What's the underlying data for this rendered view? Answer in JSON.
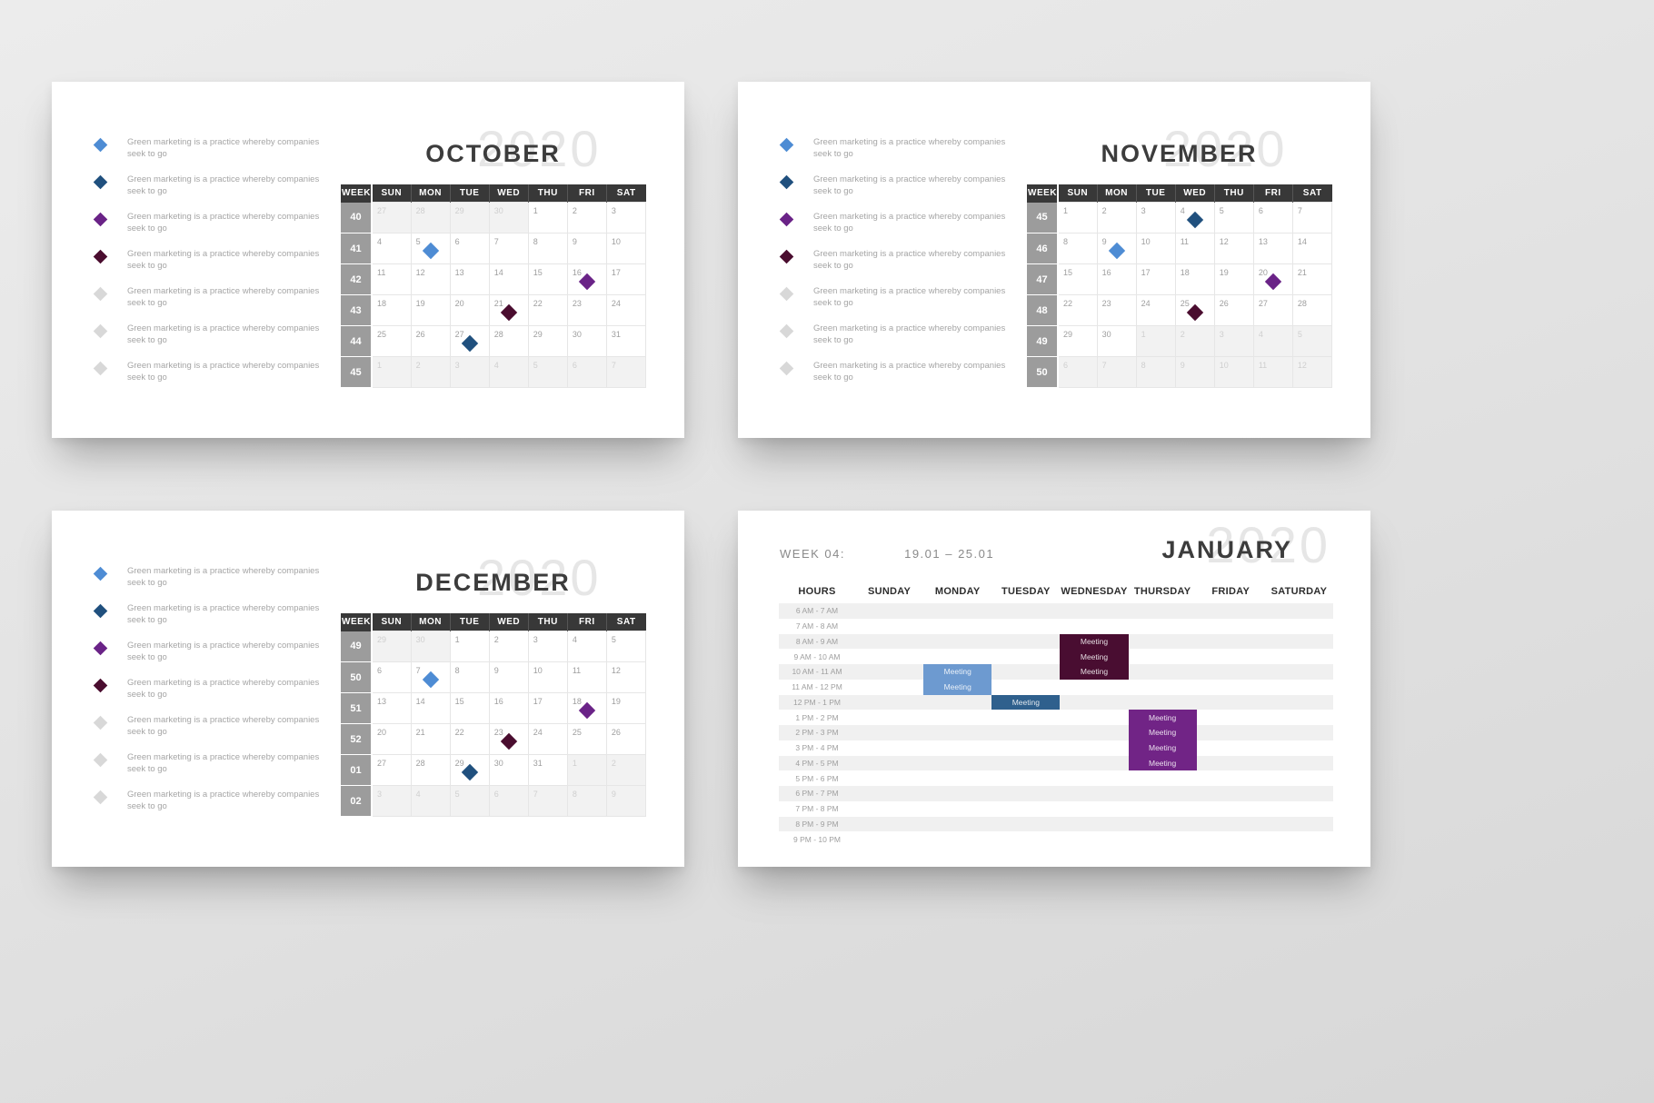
{
  "palette": {
    "blue": "#4E8CD4",
    "navy": "#20507E",
    "purple": "#6A2387",
    "maroon": "#4A0D2F",
    "gray": "#D8D8D8",
    "meeting_blue_light": "#6D9AD0",
    "meeting_blue_dark": "#2F608D",
    "meeting_maroon": "#490D31",
    "meeting_purple": "#712486"
  },
  "legend": {
    "line1": "Green marketing is a practice whereby companies",
    "line2": "seek to go",
    "items": [
      "blue",
      "navy",
      "purple",
      "maroon",
      "gray",
      "gray",
      "gray"
    ]
  },
  "calendars": [
    {
      "id": "october",
      "title": "OCTOBER",
      "ghost_year": "2020",
      "week_col_header": "WEEK",
      "day_headers": [
        "SUN",
        "MON",
        "TUE",
        "WED",
        "THU",
        "FRI",
        "SAT"
      ],
      "weeks": [
        {
          "num": "40",
          "days": [
            "27",
            "28",
            "29",
            "30",
            "1",
            "2",
            "3"
          ],
          "muted": [
            0,
            1,
            2,
            3
          ]
        },
        {
          "num": "41",
          "days": [
            "4",
            "5",
            "6",
            "7",
            "8",
            "9",
            "10"
          ],
          "muted": [],
          "event": {
            "day": 1,
            "color": "blue"
          }
        },
        {
          "num": "42",
          "days": [
            "11",
            "12",
            "13",
            "14",
            "15",
            "16",
            "17"
          ],
          "muted": [],
          "event": {
            "day": 5,
            "color": "purple"
          }
        },
        {
          "num": "43",
          "days": [
            "18",
            "19",
            "20",
            "21",
            "22",
            "23",
            "24"
          ],
          "muted": [],
          "event": {
            "day": 3,
            "color": "maroon"
          }
        },
        {
          "num": "44",
          "days": [
            "25",
            "26",
            "27",
            "28",
            "29",
            "30",
            "31"
          ],
          "muted": [],
          "event": {
            "day": 2,
            "color": "navy"
          }
        },
        {
          "num": "45",
          "days": [
            "1",
            "2",
            "3",
            "4",
            "5",
            "6",
            "7"
          ],
          "muted": [
            0,
            1,
            2,
            3,
            4,
            5,
            6
          ]
        }
      ]
    },
    {
      "id": "november",
      "title": "NOVEMBER",
      "ghost_year": "2020",
      "week_col_header": "WEEK",
      "day_headers": [
        "SUN",
        "MON",
        "TUE",
        "WED",
        "THU",
        "FRI",
        "SAT"
      ],
      "weeks": [
        {
          "num": "45",
          "days": [
            "1",
            "2",
            "3",
            "4",
            "5",
            "6",
            "7"
          ],
          "muted": [],
          "event": {
            "day": 3,
            "color": "navy"
          }
        },
        {
          "num": "46",
          "days": [
            "8",
            "9",
            "10",
            "11",
            "12",
            "13",
            "14"
          ],
          "muted": [],
          "event": {
            "day": 1,
            "color": "blue"
          }
        },
        {
          "num": "47",
          "days": [
            "15",
            "16",
            "17",
            "18",
            "19",
            "20",
            "21"
          ],
          "muted": [],
          "event": {
            "day": 5,
            "color": "purple"
          }
        },
        {
          "num": "48",
          "days": [
            "22",
            "23",
            "24",
            "25",
            "26",
            "27",
            "28"
          ],
          "muted": [],
          "event": {
            "day": 3,
            "color": "maroon"
          }
        },
        {
          "num": "49",
          "days": [
            "29",
            "30",
            "1",
            "2",
            "3",
            "4",
            "5"
          ],
          "muted": [
            2,
            3,
            4,
            5,
            6
          ]
        },
        {
          "num": "50",
          "days": [
            "6",
            "7",
            "8",
            "9",
            "10",
            "11",
            "12"
          ],
          "muted": [
            0,
            1,
            2,
            3,
            4,
            5,
            6
          ]
        }
      ]
    },
    {
      "id": "december",
      "title": "DECEMBER",
      "ghost_year": "2020",
      "week_col_header": "WEEK",
      "day_headers": [
        "SUN",
        "MON",
        "TUE",
        "WED",
        "THU",
        "FRI",
        "SAT"
      ],
      "weeks": [
        {
          "num": "49",
          "days": [
            "29",
            "30",
            "1",
            "2",
            "3",
            "4",
            "5"
          ],
          "muted": [
            0,
            1
          ]
        },
        {
          "num": "50",
          "days": [
            "6",
            "7",
            "8",
            "9",
            "10",
            "11",
            "12"
          ],
          "muted": [],
          "event": {
            "day": 1,
            "color": "blue"
          }
        },
        {
          "num": "51",
          "days": [
            "13",
            "14",
            "15",
            "16",
            "17",
            "18",
            "19"
          ],
          "muted": [],
          "event": {
            "day": 5,
            "color": "purple"
          }
        },
        {
          "num": "52",
          "days": [
            "20",
            "21",
            "22",
            "23",
            "24",
            "25",
            "26"
          ],
          "muted": [],
          "event": {
            "day": 3,
            "color": "maroon"
          }
        },
        {
          "num": "01",
          "days": [
            "27",
            "28",
            "29",
            "30",
            "31",
            "1",
            "2"
          ],
          "muted": [
            5,
            6
          ],
          "event": {
            "day": 2,
            "color": "navy"
          }
        },
        {
          "num": "02",
          "days": [
            "3",
            "4",
            "5",
            "6",
            "7",
            "8",
            "9"
          ],
          "muted": [
            0,
            1,
            2,
            3,
            4,
            5,
            6
          ]
        }
      ]
    }
  ],
  "schedule": {
    "id": "january",
    "title": "JANUARY",
    "ghost_year": "2020",
    "week_label": "WEEK 04:",
    "date_range": "19.01 – 25.01",
    "hours_header": "HOURS",
    "day_headers": [
      "SUNDAY",
      "MONDAY",
      "TUESDAY",
      "WEDNESDAY",
      "THURSDAY",
      "FRIDAY",
      "SATURDAY"
    ],
    "hours": [
      "6 AM - 7 AM",
      "7 AM - 8 AM",
      "8 AM - 9 AM",
      "9 AM - 10 AM",
      "10 AM - 11 AM",
      "11 AM - 12 PM",
      "12 PM - 1 PM",
      "1 PM - 2 PM",
      "2 PM - 3 PM",
      "3 PM - 4 PM",
      "4 PM - 5 PM",
      "5 PM - 6 PM",
      "6 PM - 7 PM",
      "7 PM - 8 PM",
      "8 PM - 9 PM",
      "9 PM - 10 PM"
    ],
    "meetings": [
      {
        "day": 1,
        "start": 4,
        "span": 2,
        "label": "Meeting",
        "color": "meeting_blue_light"
      },
      {
        "day": 2,
        "start": 6,
        "span": 1,
        "label": "Meeting",
        "color": "meeting_blue_dark"
      },
      {
        "day": 3,
        "start": 2,
        "span": 3,
        "label": "Meeting",
        "color": "meeting_maroon"
      },
      {
        "day": 4,
        "start": 7,
        "span": 4,
        "label": "Meeting",
        "color": "meeting_purple"
      }
    ]
  }
}
